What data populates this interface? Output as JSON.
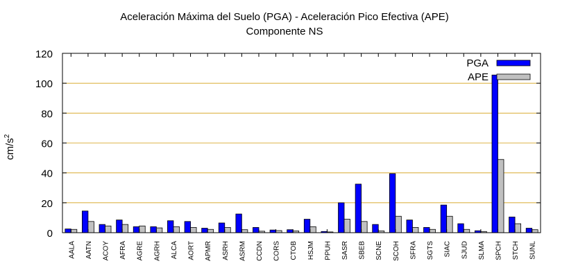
{
  "chart_data": {
    "type": "bar",
    "title": "Aceleración Máxima del Suelo (PGA) -  Aceleración Pico Efectiva (APE)",
    "subtitle": "Componente NS",
    "xlabel": "",
    "ylabel": "cm/s",
    "ylabel_superscript": "2",
    "ylim": [
      0,
      120
    ],
    "yticks": [
      0,
      20,
      40,
      60,
      80,
      100,
      120
    ],
    "grid": true,
    "legend_position": "top-right",
    "categories": [
      "AALA",
      "AATN",
      "ACOY",
      "AFRA",
      "AGRE",
      "AGRH",
      "ALCA",
      "AORT",
      "APMR",
      "ASRH",
      "ASRM",
      "CCDN",
      "CORS",
      "CTOB",
      "HSJM",
      "PPUH",
      "SASR",
      "SBEB",
      "SCNE",
      "SCOH",
      "SFRA",
      "SGTS",
      "SIAC",
      "SJUD",
      "SLMA",
      "SPCH",
      "STCH",
      "SUNL"
    ],
    "series": [
      {
        "name": "PGA",
        "color": "#0000ff",
        "values": [
          2.5,
          14.5,
          5.5,
          8.5,
          4.0,
          4.0,
          8.0,
          7.5,
          3.0,
          6.5,
          12.5,
          3.5,
          1.8,
          2.0,
          9.0,
          0.8,
          20.0,
          32.5,
          5.5,
          39.5,
          8.5,
          3.5,
          18.5,
          6.0,
          1.3,
          105.5,
          10.5,
          3.0
        ]
      },
      {
        "name": "APE",
        "color": "#c0c0c0",
        "values": [
          2.2,
          7.5,
          4.5,
          5.5,
          4.5,
          3.2,
          4.0,
          3.5,
          2.2,
          3.5,
          2.0,
          1.0,
          1.4,
          1.2,
          4.0,
          0.5,
          9.0,
          7.5,
          1.2,
          11.0,
          3.5,
          2.2,
          11.0,
          2.2,
          0.8,
          49.0,
          6.0,
          2.0
        ]
      }
    ]
  }
}
